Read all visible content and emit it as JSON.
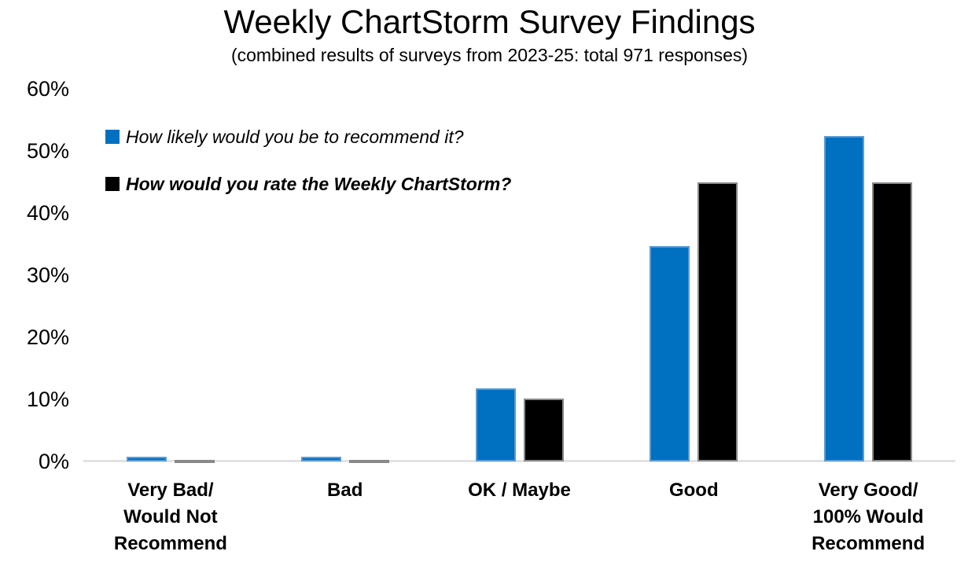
{
  "chart_data": {
    "type": "bar",
    "title": "Weekly ChartStorm Survey Findings",
    "subtitle": "(combined results of surveys from 2023-25: total 971 responses)",
    "categories": [
      "Very Bad/\nWould Not\nRecommend",
      "Bad",
      "OK / Maybe",
      "Good",
      "Very Good/\n100% Would\nRecommend"
    ],
    "series": [
      {
        "name": "How likely would you be to recommend it?",
        "color": "#0070C0",
        "border_color": "#5B9BD5",
        "values": [
          0.8,
          0.7,
          11.8,
          34.7,
          52.4
        ]
      },
      {
        "name": "How would you rate the Weekly ChartStorm?",
        "color": "#000000",
        "border_color": "#898989",
        "values": [
          0.3,
          0.3,
          10.1,
          44.9,
          44.9
        ]
      }
    ],
    "ylabel": "",
    "xlabel": "",
    "ylim": [
      0,
      60
    ],
    "ytick_step": 10,
    "yticks": [
      "0%",
      "10%",
      "20%",
      "30%",
      "40%",
      "50%",
      "60%"
    ],
    "grid": false,
    "legend_position": "top-left",
    "axis_line_color": "#E3E3E3",
    "value_format": "percent"
  }
}
